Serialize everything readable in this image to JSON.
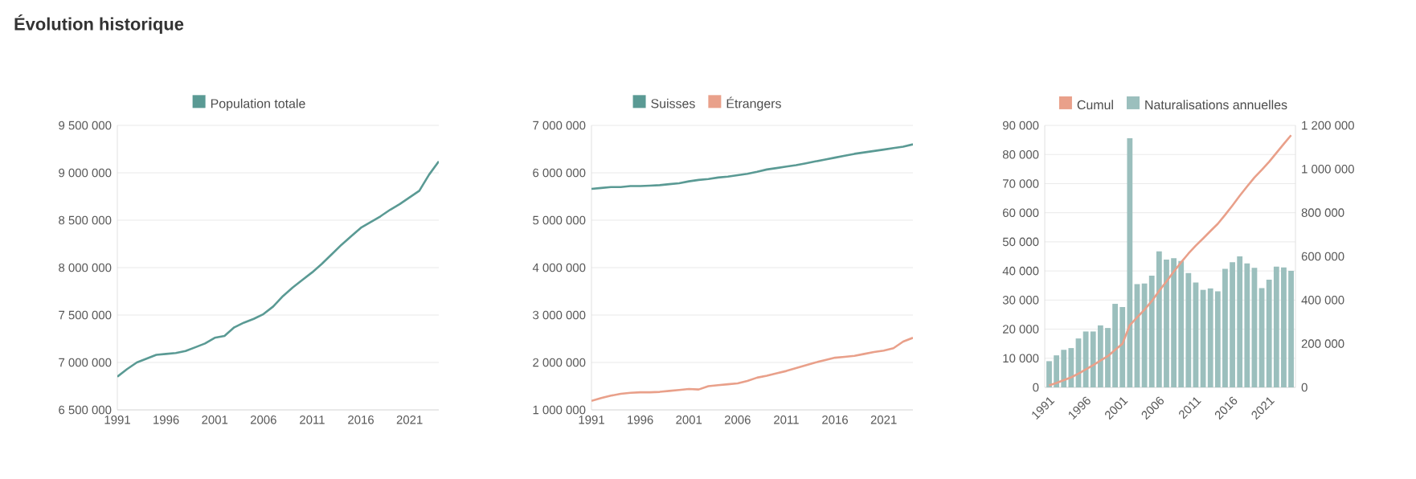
{
  "chart_data": [
    {
      "type": "line",
      "title": "Évolution historique",
      "legend": "top",
      "grid": "y",
      "line_style": "solid",
      "x": [
        1991,
        1992,
        1993,
        1994,
        1995,
        1996,
        1997,
        1998,
        1999,
        2000,
        2001,
        2002,
        2003,
        2004,
        2005,
        2006,
        2007,
        2008,
        2009,
        2010,
        2011,
        2012,
        2013,
        2014,
        2015,
        2016,
        2017,
        2018,
        2019,
        2020,
        2021,
        2022,
        2023,
        2024
      ],
      "xlim": [
        1991,
        2024
      ],
      "xticks": [
        1991,
        1996,
        2001,
        2006,
        2011,
        2016,
        2021
      ],
      "ylim": [
        6500000,
        9500000
      ],
      "yticks": [
        {
          "value": 6500000,
          "label": "6 500 000"
        },
        {
          "value": 7000000,
          "label": "7 000 000"
        },
        {
          "value": 7500000,
          "label": "7 500 000"
        },
        {
          "value": 8000000,
          "label": "8 000 000"
        },
        {
          "value": 8500000,
          "label": "8 500 000"
        },
        {
          "value": 9000000,
          "label": "9 000 000"
        },
        {
          "value": 9500000,
          "label": "9 500 000"
        }
      ],
      "series": [
        {
          "name": "Population totale",
          "color": "#5a9a94",
          "values": [
            6850000,
            6930000,
            7000000,
            7040000,
            7080000,
            7090000,
            7100000,
            7120000,
            7160000,
            7200000,
            7260000,
            7280000,
            7370000,
            7420000,
            7460000,
            7510000,
            7590000,
            7700000,
            7790000,
            7870000,
            7950000,
            8040000,
            8140000,
            8240000,
            8330000,
            8420000,
            8480000,
            8540000,
            8610000,
            8670000,
            8740000,
            8810000,
            8980000,
            9120000
          ]
        }
      ]
    },
    {
      "type": "line",
      "legend": "top",
      "grid": "y",
      "line_style": "solid",
      "x": [
        1991,
        1992,
        1993,
        1994,
        1995,
        1996,
        1997,
        1998,
        1999,
        2000,
        2001,
        2002,
        2003,
        2004,
        2005,
        2006,
        2007,
        2008,
        2009,
        2010,
        2011,
        2012,
        2013,
        2014,
        2015,
        2016,
        2017,
        2018,
        2019,
        2020,
        2021,
        2022,
        2023,
        2024
      ],
      "xlim": [
        1991,
        2024
      ],
      "xticks": [
        1991,
        1996,
        2001,
        2006,
        2011,
        2016,
        2021
      ],
      "ylim": [
        1000000,
        7000000
      ],
      "yticks": [
        {
          "value": 1000000,
          "label": "1 000 000"
        },
        {
          "value": 2000000,
          "label": "2 000 000"
        },
        {
          "value": 3000000,
          "label": "3 000 000"
        },
        {
          "value": 4000000,
          "label": "4 000 000"
        },
        {
          "value": 5000000,
          "label": "5 000 000"
        },
        {
          "value": 6000000,
          "label": "6 000 000"
        },
        {
          "value": 7000000,
          "label": "7 000 000"
        }
      ],
      "series": [
        {
          "name": "Suisses",
          "color": "#5a9a94",
          "values": [
            5660000,
            5680000,
            5700000,
            5700000,
            5720000,
            5720000,
            5730000,
            5740000,
            5760000,
            5780000,
            5820000,
            5850000,
            5870000,
            5900000,
            5920000,
            5950000,
            5980000,
            6020000,
            6070000,
            6100000,
            6130000,
            6160000,
            6200000,
            6240000,
            6280000,
            6320000,
            6360000,
            6400000,
            6430000,
            6460000,
            6490000,
            6520000,
            6550000,
            6600000
          ]
        },
        {
          "name": "Étrangers",
          "color": "#e9a08a",
          "values": [
            1190000,
            1250000,
            1300000,
            1340000,
            1360000,
            1370000,
            1370000,
            1380000,
            1400000,
            1420000,
            1440000,
            1430000,
            1500000,
            1520000,
            1540000,
            1560000,
            1610000,
            1680000,
            1720000,
            1770000,
            1820000,
            1880000,
            1940000,
            2000000,
            2050000,
            2100000,
            2120000,
            2140000,
            2180000,
            2220000,
            2250000,
            2300000,
            2440000,
            2520000
          ]
        }
      ]
    },
    {
      "type": "bar",
      "legend": "top",
      "grid": "y",
      "categories": [
        "1991",
        null,
        null,
        null,
        null,
        "1996",
        null,
        null,
        null,
        null,
        "2001",
        null,
        null,
        null,
        null,
        "2006",
        null,
        null,
        null,
        null,
        "2011",
        null,
        null,
        null,
        null,
        "2016",
        null,
        null,
        null,
        null,
        "2021",
        null,
        null,
        null
      ],
      "ylim": [
        0,
        90000
      ],
      "yticks": [
        0,
        {
          "value": 10000,
          "label": "10 000"
        },
        {
          "value": 20000,
          "label": "20 000"
        },
        {
          "value": 30000,
          "label": "30 000"
        },
        {
          "value": 40000,
          "label": "40 000"
        },
        {
          "value": 50000,
          "label": "50 000"
        },
        {
          "value": 60000,
          "label": "60 000"
        },
        {
          "value": 70000,
          "label": "70 000"
        },
        {
          "value": 80000,
          "label": "80 000"
        },
        {
          "value": 90000,
          "label": "90 000"
        }
      ],
      "y2lim": [
        0,
        1200000
      ],
      "y2ticks": [
        0,
        {
          "value": 200000,
          "label": "200 000"
        },
        {
          "value": 400000,
          "label": "400 000"
        },
        {
          "value": 600000,
          "label": "600 000"
        },
        {
          "value": 800000,
          "label": "800 000"
        },
        {
          "value": 1000000,
          "label": "1 000 000"
        },
        {
          "value": 1200000,
          "label": "1 200 000"
        }
      ],
      "series": [
        {
          "name": "Cumul",
          "type": "line",
          "axis": "y2",
          "color": "#e9a08a",
          "values": [
            9000,
            20000,
            33000,
            46000,
            63000,
            82000,
            102000,
            123000,
            143000,
            172000,
            200000,
            285000,
            321000,
            356000,
            395000,
            442000,
            485000,
            530000,
            573000,
            613000,
            649000,
            682000,
            716000,
            749000,
            790000,
            833000,
            878000,
            920000,
            961000,
            996000,
            1033000,
            1074000,
            1115000,
            1155000
          ]
        },
        {
          "name": "Naturalisations annuelles",
          "color": "#9bbfbd",
          "values": [
            9000,
            11000,
            12900,
            13500,
            16800,
            19200,
            19200,
            21300,
            20400,
            28700,
            27600,
            85600,
            35500,
            35700,
            38400,
            46700,
            43900,
            44400,
            43400,
            39300,
            36000,
            33500,
            34000,
            33000,
            40700,
            43000,
            45000,
            42600,
            41100,
            34100,
            37000,
            41500,
            41200,
            40000
          ]
        }
      ]
    }
  ]
}
